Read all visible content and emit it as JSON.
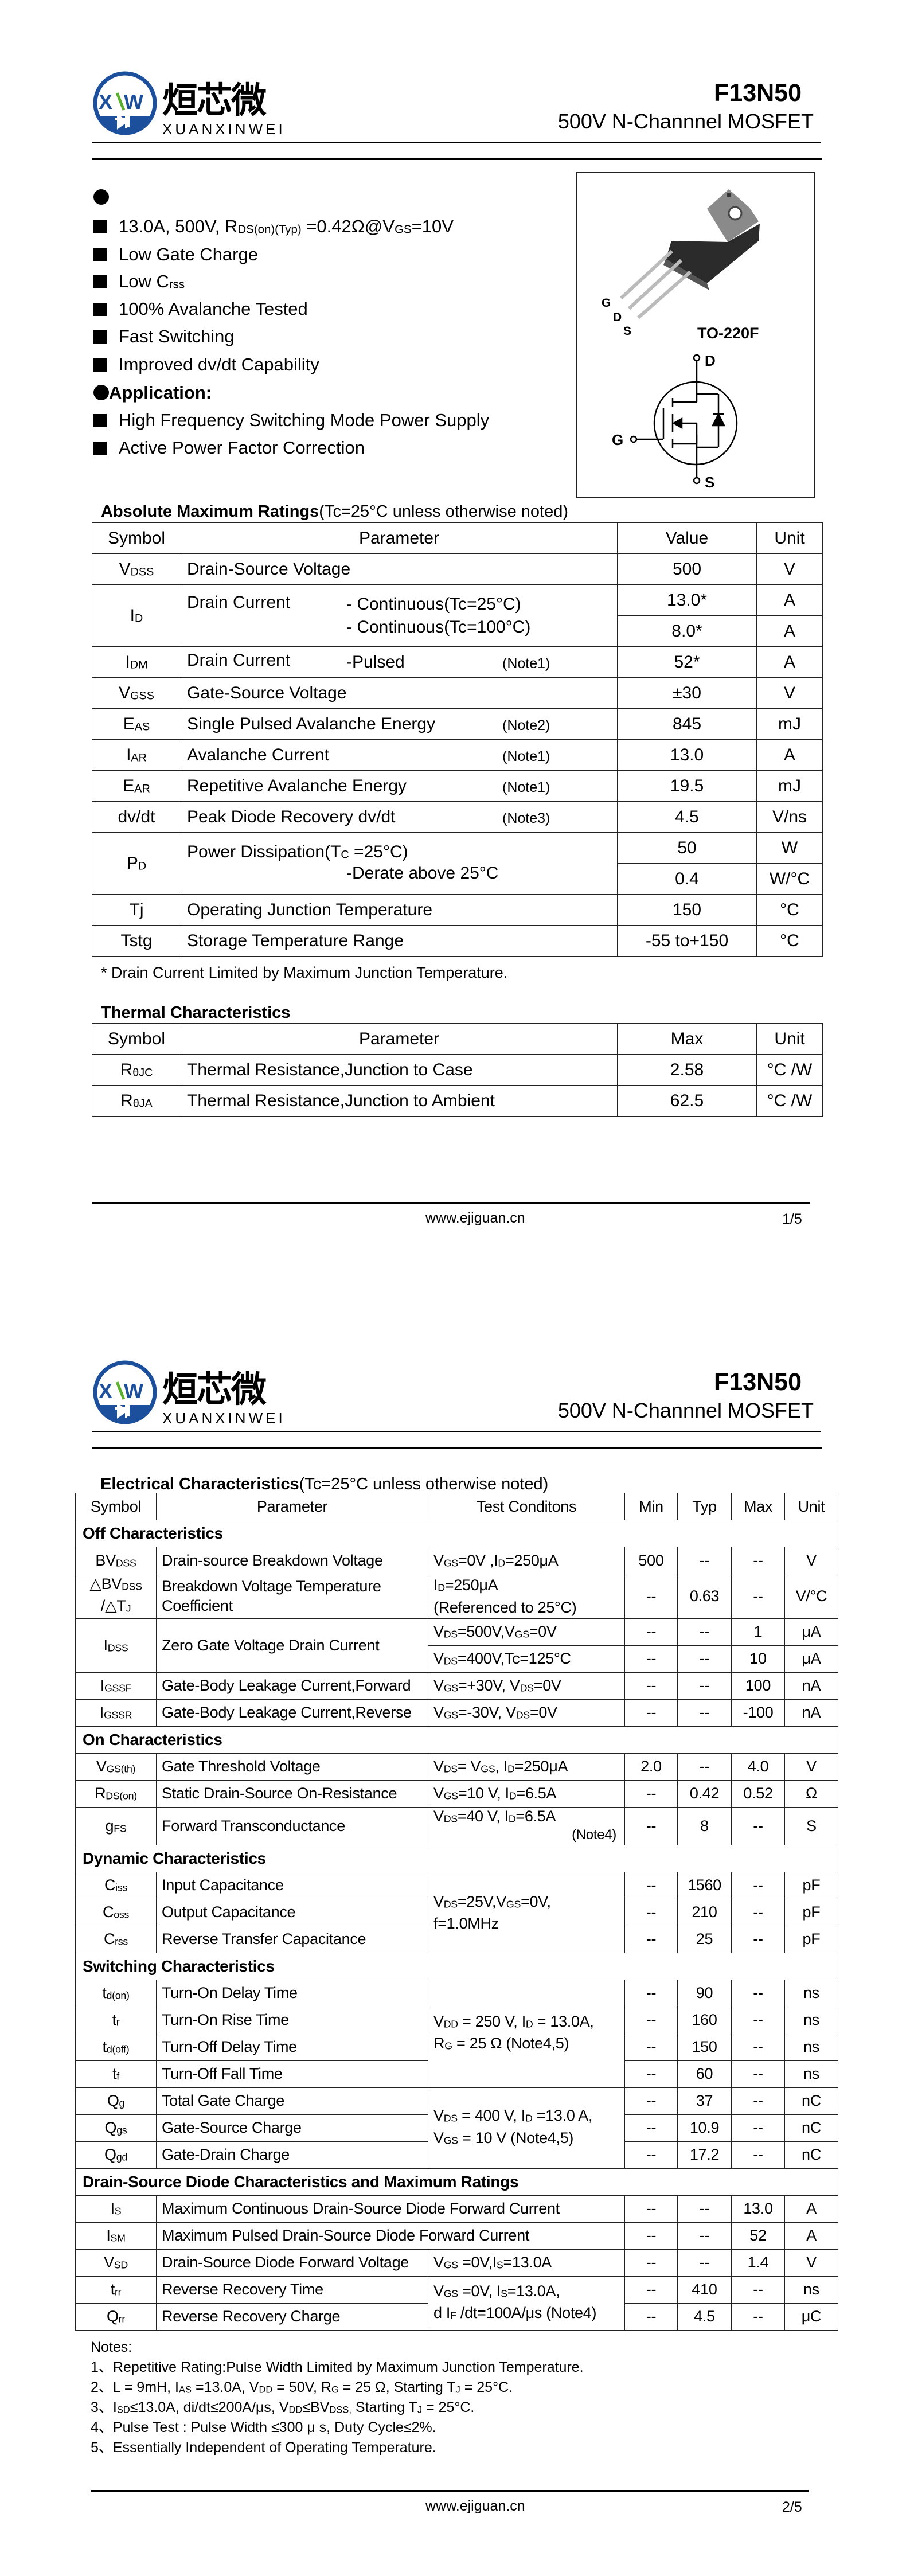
{
  "header": {
    "logo_cn": "烜芯微",
    "logo_en": "XUANXINWEI",
    "logo_mark": "XXW",
    "part_number": "F13N50",
    "description": "500V N-Channnel MOSFET"
  },
  "colors": {
    "logo_blue": "#1c4f9c",
    "logo_green": "#5bb030",
    "text": "#000000"
  },
  "features": {
    "items": [
      [
        "13.0A, 500V, R",
        "DS(on)(Typ)",
        " =0.42Ω@V",
        "GS",
        "=10V"
      ],
      "Low Gate Charge",
      [
        "Low C",
        "rss"
      ],
      "100% Avalanche Tested",
      "Fast Switching",
      "Improved dv/dt Capability"
    ]
  },
  "application": {
    "title": "Application:",
    "items": [
      "High Frequency Switching Mode Power Supply",
      "Active Power Factor Correction"
    ]
  },
  "package": {
    "name": "TO-220F",
    "pins": [
      "G",
      "D",
      "S"
    ],
    "schematic_labels": {
      "drain": "D",
      "gate": "G",
      "source": "S"
    }
  },
  "abs_max": {
    "title": "Absolute Maximum Ratings",
    "condition": "(Tc=25°C unless otherwise noted)",
    "headers": [
      "Symbol",
      "Parameter",
      "Value",
      "Unit"
    ],
    "rows": [
      {
        "symbol": [
          "V",
          "DSS"
        ],
        "parameter": "Drain-Source Voltage",
        "values": [
          {
            "value": "500",
            "unit": "V"
          }
        ]
      },
      {
        "symbol": [
          "I",
          "D"
        ],
        "parameter": "Drain Current",
        "detail": [
          "- Continuous(Tc=25°C)",
          "- Continuous(Tc=100°C)"
        ],
        "values": [
          {
            "value": "13.0*",
            "unit": "A"
          },
          {
            "value": "8.0*",
            "unit": "A"
          }
        ]
      },
      {
        "symbol": [
          "I",
          "DM"
        ],
        "parameter": "Drain Current",
        "detail": [
          "-Pulsed"
        ],
        "note": "(Note1)",
        "values": [
          {
            "value": "52*",
            "unit": "A"
          }
        ]
      },
      {
        "symbol": [
          "V",
          "GSS"
        ],
        "parameter": "Gate-Source Voltage",
        "values": [
          {
            "value": "±30",
            "unit": "V"
          }
        ]
      },
      {
        "symbol": [
          "E",
          "AS"
        ],
        "parameter": "Single Pulsed Avalanche Energy",
        "note": "(Note2)",
        "values": [
          {
            "value": "845",
            "unit": "mJ"
          }
        ]
      },
      {
        "symbol": [
          "I",
          "AR"
        ],
        "parameter": "Avalanche Current",
        "note": "(Note1)",
        "values": [
          {
            "value": "13.0",
            "unit": "A"
          }
        ]
      },
      {
        "symbol": [
          "E",
          "AR"
        ],
        "parameter": "Repetitive Avalanche Energy",
        "note": "(Note1)",
        "values": [
          {
            "value": "19.5",
            "unit": "mJ"
          }
        ]
      },
      {
        "symbol": "dv/dt",
        "parameter": "Peak Diode Recovery dv/dt",
        "note": "(Note3)",
        "values": [
          {
            "value": "4.5",
            "unit": "V/ns"
          }
        ]
      },
      {
        "symbol": [
          "P",
          "D"
        ],
        "parameter": [
          "Power Dissipation(T",
          "C",
          " =25°C)"
        ],
        "detail": [
          "-Derate above 25°C"
        ],
        "values": [
          {
            "value": "50",
            "unit": "W"
          },
          {
            "value": "0.4",
            "unit": "W/°C"
          }
        ]
      },
      {
        "symbol": "Tj",
        "parameter": "Operating Junction Temperature",
        "values": [
          {
            "value": "150",
            "unit": "°C"
          }
        ]
      },
      {
        "symbol": "Tstg",
        "parameter": "Storage Temperature Range",
        "values": [
          {
            "value": "-55 to+150",
            "unit": "°C"
          }
        ]
      }
    ],
    "footnote": "* Drain Current Limited by Maximum Junction Temperature."
  },
  "thermal": {
    "title": "Thermal Characteristics",
    "headers": [
      "Symbol",
      "Parameter",
      "Max",
      "Unit"
    ],
    "rows": [
      {
        "symbol": [
          "R",
          "θJC"
        ],
        "parameter": "Thermal Resistance,Junction to Case",
        "values": [
          {
            "value": "2.58",
            "unit": "°C /W"
          }
        ]
      },
      {
        "symbol": [
          "R",
          "θJA"
        ],
        "parameter": "Thermal Resistance,Junction to Ambient",
        "values": [
          {
            "value": "62.5",
            "unit": "°C /W"
          }
        ]
      }
    ]
  },
  "electrical": {
    "title": "Electrical Characteristics",
    "condition": "(Tc=25°C unless otherwise noted)",
    "headers": [
      "Symbol",
      "Parameter",
      "Test Conditons",
      "Min",
      "Typ",
      "Max",
      "Unit"
    ],
    "sections": [
      {
        "title": "Off Characteristics",
        "items": [
          {
            "symbol": [
              "BV",
              "DSS"
            ],
            "parameter": "Drain-source Breakdown Voltage",
            "conditions": [
              "V",
              "GS",
              "=0V ,I",
              "D",
              "=250μA"
            ],
            "min": "500",
            "typ": "--",
            "max": "--",
            "unit": "V"
          },
          {
            "symbol": {
              "lines": [
                [
                  "△BV",
                  "DSS"
                ],
                [
                  "/△T",
                  "J"
                ]
              ]
            },
            "parameter": {
              "lines": [
                "Breakdown Voltage Temperature",
                "Coefficient"
              ]
            },
            "conditions": {
              "lines": [
                [
                  "I",
                  "D",
                  "=250μA"
                ],
                "(Referenced to 25°C)"
              ]
            },
            "min": "--",
            "typ": "0.63",
            "max": "--",
            "unit": "V/°C"
          },
          {
            "symbol": [
              "I",
              "DSS"
            ],
            "parameter": "Zero Gate Voltage Drain Current",
            "subrows": [
              {
                "conditions": [
                  "V",
                  "DS",
                  "=500V,V",
                  "GS",
                  "=0V"
                ],
                "min": "--",
                "typ": "--",
                "max": "1",
                "unit": "μA"
              },
              {
                "conditions": [
                  "V",
                  "DS",
                  "=400V,Tc=125°C"
                ],
                "min": "--",
                "typ": "--",
                "max": "10",
                "unit": "μA"
              }
            ]
          },
          {
            "symbol": [
              "I",
              "GSSF"
            ],
            "parameter": "Gate-Body Leakage Current,Forward",
            "conditions": [
              "V",
              "GS",
              "=+30V, V",
              "DS",
              "=0V"
            ],
            "min": "--",
            "typ": "--",
            "max": "100",
            "unit": "nA"
          },
          {
            "symbol": [
              "I",
              "GSSR"
            ],
            "parameter": "Gate-Body Leakage Current,Reverse",
            "conditions": [
              "V",
              "GS",
              "=-30V, V",
              "DS",
              "=0V"
            ],
            "min": "--",
            "typ": "--",
            "max": "-100",
            "unit": "nA"
          }
        ]
      },
      {
        "title": "On Characteristics",
        "items": [
          {
            "symbol": [
              "V",
              "GS(th)"
            ],
            "parameter": "Gate Threshold Voltage",
            "conditions": [
              "V",
              "DS",
              "= V",
              "GS",
              ", I",
              "D",
              "=250μA"
            ],
            "min": "2.0",
            "typ": "--",
            "max": "4.0",
            "unit": "V"
          },
          {
            "symbol": [
              "R",
              "DS(on)"
            ],
            "parameter": "Static Drain-Source On-Resistance",
            "conditions": [
              "V",
              "GS",
              "=10 V, I",
              "D",
              "=6.5A"
            ],
            "min": "--",
            "typ": "0.42",
            "max": "0.52",
            "unit": "Ω"
          },
          {
            "symbol": [
              "g",
              "FS"
            ],
            "parameter": "Forward Transconductance",
            "conditions": [
              "V",
              "DS",
              "=40 V, I",
              "D",
              "=6.5A"
            ],
            "conditions_note": "(Note4)",
            "min": "--",
            "typ": "8",
            "max": "--",
            "unit": "S"
          }
        ]
      },
      {
        "title": "Dynamic Characteristics",
        "items": [
          {
            "conditions": {
              "lines": [
                [
                  "V",
                  "DS",
                  "=25V,V",
                  "GS",
                  "=0V,"
                ],
                "f=1.0MHz"
              ]
            },
            "rows": [
              {
                "symbol": [
                  "C",
                  "iss"
                ],
                "parameter": "Input Capacitance",
                "min": "--",
                "typ": "1560",
                "max": "--",
                "unit": "pF"
              },
              {
                "symbol": [
                  "C",
                  "oss"
                ],
                "parameter": "Output Capacitance",
                "min": "--",
                "typ": "210",
                "max": "--",
                "unit": "pF"
              },
              {
                "symbol": [
                  "C",
                  "rss"
                ],
                "parameter": "Reverse Transfer Capacitance",
                "min": "--",
                "typ": "25",
                "max": "--",
                "unit": "pF"
              }
            ]
          }
        ]
      },
      {
        "title": "Switching Characteristics",
        "items": [
          {
            "conditions": {
              "lines": [
                [
                  "V",
                  "DD",
                  " = 250 V, I",
                  "D",
                  " = 13.0A,"
                ],
                [
                  "R",
                  "G",
                  " = 25 Ω     (Note4,5)"
                ]
              ]
            },
            "rows": [
              {
                "symbol": [
                  "t",
                  "d(on)"
                ],
                "parameter": "Turn-On Delay Time",
                "min": "--",
                "typ": "90",
                "max": "--",
                "unit": "ns"
              },
              {
                "symbol": [
                  "t",
                  "r"
                ],
                "parameter": "Turn-On Rise Time",
                "min": "--",
                "typ": "160",
                "max": "--",
                "unit": "ns"
              },
              {
                "symbol": [
                  "t",
                  "d(off)"
                ],
                "parameter": "Turn-Off Delay Time",
                "min": "--",
                "typ": "150",
                "max": "--",
                "unit": "ns"
              },
              {
                "symbol": [
                  "t",
                  "f"
                ],
                "parameter": "Turn-Off Fall Time",
                "min": "--",
                "typ": "60",
                "max": "--",
                "unit": "ns"
              }
            ]
          },
          {
            "conditions": {
              "lines": [
                [
                  "V",
                  "DS",
                  " = 400 V, I",
                  "D",
                  " =13.0 A,"
                ],
                [
                  "V",
                  "GS",
                  " = 10 V    (Note4,5)"
                ]
              ]
            },
            "rows": [
              {
                "symbol": [
                  "Q",
                  "g"
                ],
                "parameter": "Total Gate Charge",
                "min": "--",
                "typ": "37",
                "max": "--",
                "unit": "nC"
              },
              {
                "symbol": [
                  "Q",
                  "gs"
                ],
                "parameter": "Gate-Source Charge",
                "min": "--",
                "typ": "10.9",
                "max": "--",
                "unit": "nC"
              },
              {
                "symbol": [
                  "Q",
                  "gd"
                ],
                "parameter": "Gate-Drain Charge",
                "min": "--",
                "typ": "17.2",
                "max": "--",
                "unit": "nC"
              }
            ]
          }
        ]
      },
      {
        "title": "Drain-Source Diode Characteristics and Maximum Ratings",
        "items": [
          {
            "symbol": [
              "I",
              "S"
            ],
            "parameter": "Maximum Continuous Drain-Source Diode Forward Current",
            "min": "--",
            "typ": "--",
            "max": "13.0",
            "unit": "A"
          },
          {
            "symbol": [
              "I",
              "SM"
            ],
            "parameter": "Maximum Pulsed Drain-Source Diode Forward Current",
            "min": "--",
            "typ": "--",
            "max": "52",
            "unit": "A"
          },
          {
            "symbol": [
              "V",
              "SD"
            ],
            "parameter": "Drain-Source Diode Forward Voltage",
            "conditions": [
              "V",
              "GS",
              " =0V,I",
              "S",
              "=13.0A"
            ],
            "min": "--",
            "typ": "--",
            "max": "1.4",
            "unit": "V"
          },
          {
            "conditions": {
              "lines": [
                [
                  "V",
                  "GS",
                  " =0V, I",
                  "S",
                  "=13.0A,"
                ],
                [
                  "d I",
                  "F",
                  " /dt=100A/μs (Note4)"
                ]
              ]
            },
            "rows": [
              {
                "symbol": [
                  "t",
                  "rr"
                ],
                "parameter": "Reverse Recovery Time",
                "min": "--",
                "typ": "410",
                "max": "--",
                "unit": "ns"
              },
              {
                "symbol": [
                  "Q",
                  "rr"
                ],
                "parameter": "Reverse Recovery Charge",
                "min": "--",
                "typ": "4.5",
                "max": "--",
                "unit": "μC"
              }
            ]
          }
        ]
      }
    ]
  },
  "notes": {
    "title": "Notes:",
    "items": [
      "1、Repetitive Rating:Pulse Width Limited by Maximum Junction Temperature.",
      [
        "2、L = 9mH, I",
        "AS",
        " =13.0A, V",
        "DD",
        " = 50V, R",
        "G",
        " = 25 Ω, Starting T",
        "J",
        " = 25°C."
      ],
      [
        "3、I",
        "SD",
        "≤13.0A, di/dt≤200A/μs, V",
        "DD",
        "≤BV",
        "DSS,",
        " Starting T",
        "J",
        " = 25°C."
      ],
      "4、Pulse Test : Pulse Width ≤300 μ s, Duty Cycle≤2%.",
      "5、Essentially Independent of Operating Temperature."
    ]
  },
  "footer": {
    "website": "www.ejiguan.cn",
    "pages": [
      "1/5",
      "2/5"
    ]
  }
}
